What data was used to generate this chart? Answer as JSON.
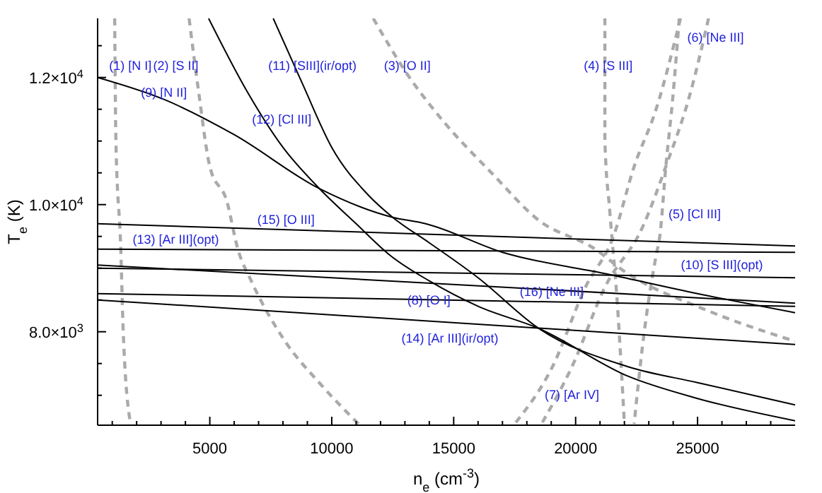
{
  "chart_data": {
    "type": "line",
    "xlabel": "n$_{e}$ (cm$^{-3}$)",
    "ylabel": "T$_{e}$ (K)",
    "marker": "none",
    "grid": false,
    "xlim": [
      400,
      29000
    ],
    "xticks": [
      {
        "value": 1000,
        "label": null
      },
      {
        "value": 2000,
        "label": null
      },
      {
        "value": 3000,
        "label": null
      },
      {
        "value": 4000,
        "label": null
      },
      5000,
      {
        "value": 6000,
        "label": null
      },
      {
        "value": 7000,
        "label": null
      },
      {
        "value": 8000,
        "label": null
      },
      {
        "value": 9000,
        "label": null
      },
      10000,
      {
        "value": 11000,
        "label": null
      },
      {
        "value": 12000,
        "label": null
      },
      {
        "value": 13000,
        "label": null
      },
      {
        "value": 14000,
        "label": null
      },
      15000,
      {
        "value": 16000,
        "label": null
      },
      {
        "value": 17000,
        "label": null
      },
      {
        "value": 18000,
        "label": null
      },
      {
        "value": 19000,
        "label": null
      },
      20000,
      {
        "value": 21000,
        "label": null
      },
      {
        "value": 22000,
        "label": null
      },
      {
        "value": 23000,
        "label": null
      },
      {
        "value": 24000,
        "label": null
      },
      25000,
      {
        "value": 26000,
        "label": null
      },
      {
        "value": 27000,
        "label": null
      },
      {
        "value": 28000,
        "label": null
      }
    ],
    "ylim": [
      6530,
      12930
    ],
    "yticks": [
      {
        "value": 7000,
        "label": null
      },
      {
        "value": 7500,
        "label": null
      },
      {
        "value": 8000,
        "label": "8.0×10$^{3}$"
      },
      {
        "value": 8500,
        "label": null
      },
      {
        "value": 9000,
        "label": null
      },
      {
        "value": 9500,
        "label": null
      },
      {
        "value": 10000,
        "label": "1.0×10$^{4}$"
      },
      {
        "value": 10500,
        "label": null
      },
      {
        "value": 11000,
        "label": null
      },
      {
        "value": 11500,
        "label": null
      },
      {
        "value": 12000,
        "label": "1.2×10$^{4}$"
      },
      {
        "value": 12500,
        "label": null
      }
    ],
    "series": [
      {
        "name": "(1) [N I]",
        "color": "#aaaaaa",
        "line_style": "dashed",
        "x": [
          1100,
          1150,
          1350,
          1450,
          1750
        ],
        "values": [
          12930,
          11000,
          9300,
          8000,
          6550
        ]
      },
      {
        "name": "(2) [S II]",
        "color": "#aaaaaa",
        "line_style": "dashed",
        "x": [
          4150,
          4550,
          5000,
          5700,
          6150,
          6700,
          8000,
          9600,
          11100
        ],
        "values": [
          12930,
          11750,
          10600,
          10050,
          9300,
          8800,
          7900,
          7150,
          6550
        ]
      },
      {
        "name": "(3) [O II]",
        "color": "#aaaaaa",
        "line_style": "dashed",
        "x": [
          11700,
          13100,
          14600,
          16550,
          18500,
          20800,
          22000,
          25300,
          29000
        ],
        "values": [
          12930,
          12050,
          11300,
          10500,
          9750,
          9300,
          8950,
          8350,
          7850
        ]
      },
      {
        "name": "(4) [S III]",
        "color": "#aaaaaa",
        "line_style": "dashed",
        "x": [
          21200,
          21200,
          21400,
          21700,
          22000
        ],
        "values": [
          12930,
          11000,
          9900,
          8500,
          6550
        ]
      },
      {
        "name": "(5) [Cl III]",
        "color": "#aaaaaa",
        "line_style": "dashed",
        "x": [
          24250,
          24000,
          23700,
          23450,
          23300,
          22750,
          22400
        ],
        "values": [
          12930,
          11750,
          10600,
          9500,
          9200,
          7800,
          6550
        ]
      },
      {
        "name": "(6) [Ne III]",
        "color": "#aaaaaa",
        "line_style": "dashed",
        "x": [
          25450,
          24700,
          23700,
          22750,
          21200,
          19850,
          18600
        ],
        "values": [
          12930,
          11750,
          10600,
          9650,
          8700,
          7450,
          6550
        ]
      },
      {
        "name": "(7) [Ar IV]",
        "color": "#aaaaaa",
        "line_style": "dashed",
        "x": [
          24300,
          23300,
          22400,
          21550,
          20400,
          19050,
          17500
        ],
        "values": [
          12930,
          11500,
          10600,
          9500,
          8700,
          7450,
          6550
        ]
      },
      {
        "name": "(8) [O I]",
        "color": "#000000",
        "line_style": "solid",
        "x": [
          400,
          29000
        ],
        "values": [
          8600,
          8400
        ]
      },
      {
        "name": "(9) [N II]",
        "color": "#000000",
        "line_style": "solid",
        "x": [
          400,
          3150,
          6000,
          9500,
          12500,
          13850,
          17000,
          21400,
          25000,
          29000
        ],
        "values": [
          12000,
          11650,
          11100,
          10250,
          9800,
          9700,
          9250,
          8900,
          8600,
          8300
        ]
      },
      {
        "name": "(10) [S III](opt)",
        "color": "#000000",
        "line_style": "solid",
        "x": [
          400,
          29000
        ],
        "values": [
          9000,
          8850
        ]
      },
      {
        "name": "(11) [SIII](ir/opt)",
        "color": "#000000",
        "line_style": "solid",
        "x": [
          7600,
          8800,
          10000,
          11500,
          12500,
          14000,
          16000,
          18500,
          22150,
          25000,
          29000
        ],
        "values": [
          12930,
          11900,
          10900,
          10150,
          9800,
          9400,
          8850,
          8050,
          7450,
          7200,
          6850
        ]
      },
      {
        "name": "(12) [Cl III]",
        "color": "#000000",
        "line_style": "solid",
        "x": [
          4950,
          6500,
          8000,
          9500,
          11000,
          12400,
          14000,
          16000,
          18500,
          22150,
          25000,
          29000
        ],
        "values": [
          12930,
          11800,
          10900,
          10250,
          9700,
          9200,
          8800,
          8400,
          8050,
          7300,
          6950,
          6600
        ]
      },
      {
        "name": "(13) [Ar III](opt)",
        "color": "#000000",
        "line_style": "solid",
        "x": [
          400,
          29000
        ],
        "values": [
          9300,
          9250
        ]
      },
      {
        "name": "(14) [Ar III](ir/opt)",
        "color": "#000000",
        "line_style": "solid",
        "x": [
          400,
          29000
        ],
        "values": [
          8500,
          7800
        ]
      },
      {
        "name": "(15) [O III]",
        "color": "#000000",
        "line_style": "solid",
        "x": [
          400,
          29000
        ],
        "values": [
          9700,
          9350
        ]
      },
      {
        "name": "(16) [Ne III]",
        "color": "#000000",
        "line_style": "solid",
        "x": [
          400,
          29000
        ],
        "values": [
          9050,
          8450
        ]
      }
    ]
  }
}
